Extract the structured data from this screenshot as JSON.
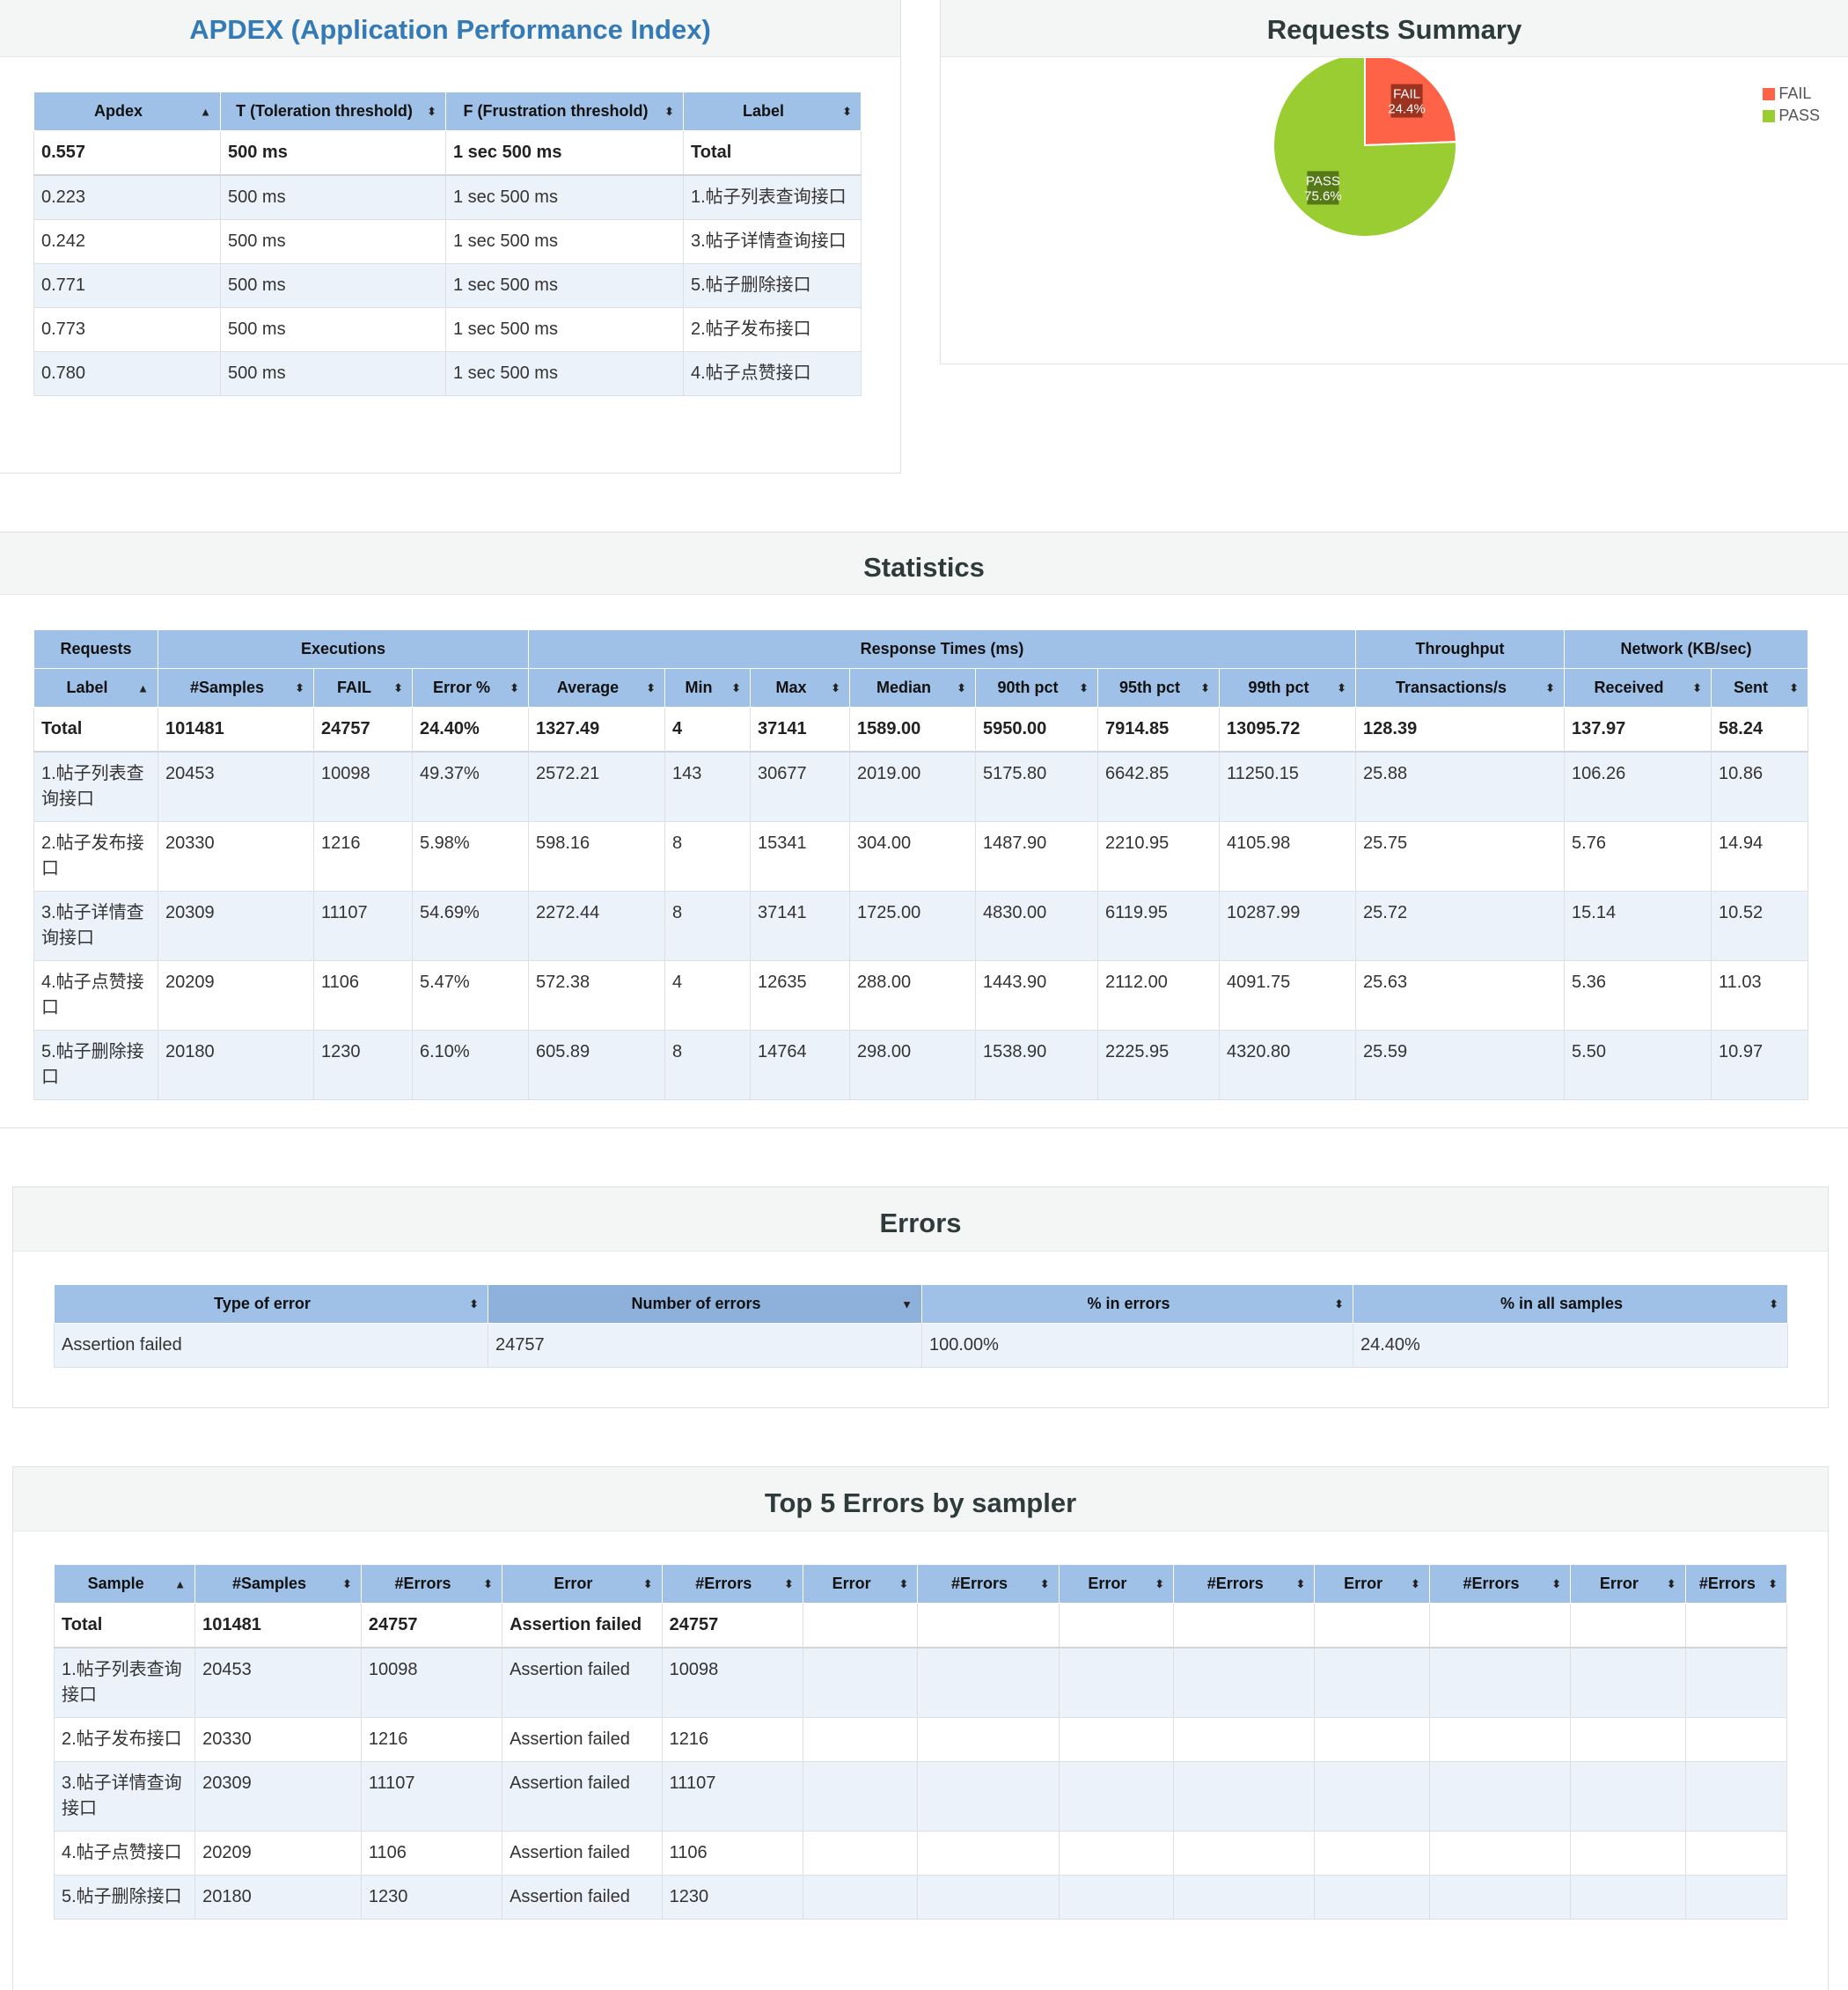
{
  "apdex": {
    "title": "APDEX (Application Performance Index)",
    "headers": [
      "Apdex",
      "T (Toleration threshold)",
      "F (Frustration threshold)",
      "Label"
    ],
    "total": [
      "0.557",
      "500 ms",
      "1 sec 500 ms",
      "Total"
    ],
    "rows": [
      [
        "0.223",
        "500 ms",
        "1 sec 500 ms",
        "1.帖子列表查询接口"
      ],
      [
        "0.242",
        "500 ms",
        "1 sec 500 ms",
        "3.帖子详情查询接口"
      ],
      [
        "0.771",
        "500 ms",
        "1 sec 500 ms",
        "5.帖子删除接口"
      ],
      [
        "0.773",
        "500 ms",
        "1 sec 500 ms",
        "2.帖子发布接口"
      ],
      [
        "0.780",
        "500 ms",
        "1 sec 500 ms",
        "4.帖子点赞接口"
      ]
    ]
  },
  "summary": {
    "title": "Requests Summary",
    "legend": [
      {
        "label": "FAIL",
        "color": "#ff6347"
      },
      {
        "label": "PASS",
        "color": "#9acd32"
      }
    ],
    "fail_label": "FAIL",
    "fail_pct": "24.4%",
    "pass_label": "PASS",
    "pass_pct": "75.6%"
  },
  "chart_data": {
    "type": "pie",
    "title": "Requests Summary",
    "categories": [
      "FAIL",
      "PASS"
    ],
    "values": [
      24.4,
      75.6
    ],
    "colors": [
      "#ff6347",
      "#9acd32"
    ],
    "legend_position": "top-right"
  },
  "statistics": {
    "title": "Statistics",
    "groups": [
      "Requests",
      "Executions",
      "Response Times (ms)",
      "Throughput",
      "Network (KB/sec)"
    ],
    "headers": [
      "Label",
      "#Samples",
      "FAIL",
      "Error %",
      "Average",
      "Min",
      "Max",
      "Median",
      "90th pct",
      "95th pct",
      "99th pct",
      "Transactions/s",
      "Received",
      "Sent"
    ],
    "total": [
      "Total",
      "101481",
      "24757",
      "24.40%",
      "1327.49",
      "4",
      "37141",
      "1589.00",
      "5950.00",
      "7914.85",
      "13095.72",
      "128.39",
      "137.97",
      "58.24"
    ],
    "rows": [
      [
        "1.帖子列表查询接口",
        "20453",
        "10098",
        "49.37%",
        "2572.21",
        "143",
        "30677",
        "2019.00",
        "5175.80",
        "6642.85",
        "11250.15",
        "25.88",
        "106.26",
        "10.86"
      ],
      [
        "2.帖子发布接口",
        "20330",
        "1216",
        "5.98%",
        "598.16",
        "8",
        "15341",
        "304.00",
        "1487.90",
        "2210.95",
        "4105.98",
        "25.75",
        "5.76",
        "14.94"
      ],
      [
        "3.帖子详情查询接口",
        "20309",
        "11107",
        "54.69%",
        "2272.44",
        "8",
        "37141",
        "1725.00",
        "4830.00",
        "6119.95",
        "10287.99",
        "25.72",
        "15.14",
        "10.52"
      ],
      [
        "4.帖子点赞接口",
        "20209",
        "1106",
        "5.47%",
        "572.38",
        "4",
        "12635",
        "288.00",
        "1443.90",
        "2112.00",
        "4091.75",
        "25.63",
        "5.36",
        "11.03"
      ],
      [
        "5.帖子删除接口",
        "20180",
        "1230",
        "6.10%",
        "605.89",
        "8",
        "14764",
        "298.00",
        "1538.90",
        "2225.95",
        "4320.80",
        "25.59",
        "5.50",
        "10.97"
      ]
    ]
  },
  "errors": {
    "title": "Errors",
    "headers": [
      "Type of error",
      "Number of errors",
      "% in errors",
      "% in all samples"
    ],
    "rows": [
      [
        "Assertion failed",
        "24757",
        "100.00%",
        "24.40%"
      ]
    ]
  },
  "top5": {
    "title": "Top 5 Errors by sampler",
    "headers": [
      "Sample",
      "#Samples",
      "#Errors",
      "Error",
      "#Errors",
      "Error",
      "#Errors",
      "Error",
      "#Errors",
      "Error",
      "#Errors",
      "Error",
      "#Errors"
    ],
    "total": [
      "Total",
      "101481",
      "24757",
      "Assertion failed",
      "24757",
      "",
      "",
      "",
      "",
      "",
      "",
      "",
      ""
    ],
    "rows": [
      [
        "1.帖子列表查询接口",
        "20453",
        "10098",
        "Assertion failed",
        "10098",
        "",
        "",
        "",
        "",
        "",
        "",
        "",
        ""
      ],
      [
        "2.帖子发布接口",
        "20330",
        "1216",
        "Assertion failed",
        "1216",
        "",
        "",
        "",
        "",
        "",
        "",
        "",
        ""
      ],
      [
        "3.帖子详情查询接口",
        "20309",
        "11107",
        "Assertion failed",
        "11107",
        "",
        "",
        "",
        "",
        "",
        "",
        "",
        ""
      ],
      [
        "4.帖子点赞接口",
        "20209",
        "1106",
        "Assertion failed",
        "1106",
        "",
        "",
        "",
        "",
        "",
        "",
        "",
        ""
      ],
      [
        "5.帖子删除接口",
        "20180",
        "1230",
        "Assertion failed",
        "1230",
        "",
        "",
        "",
        "",
        "",
        "",
        "",
        ""
      ]
    ]
  }
}
